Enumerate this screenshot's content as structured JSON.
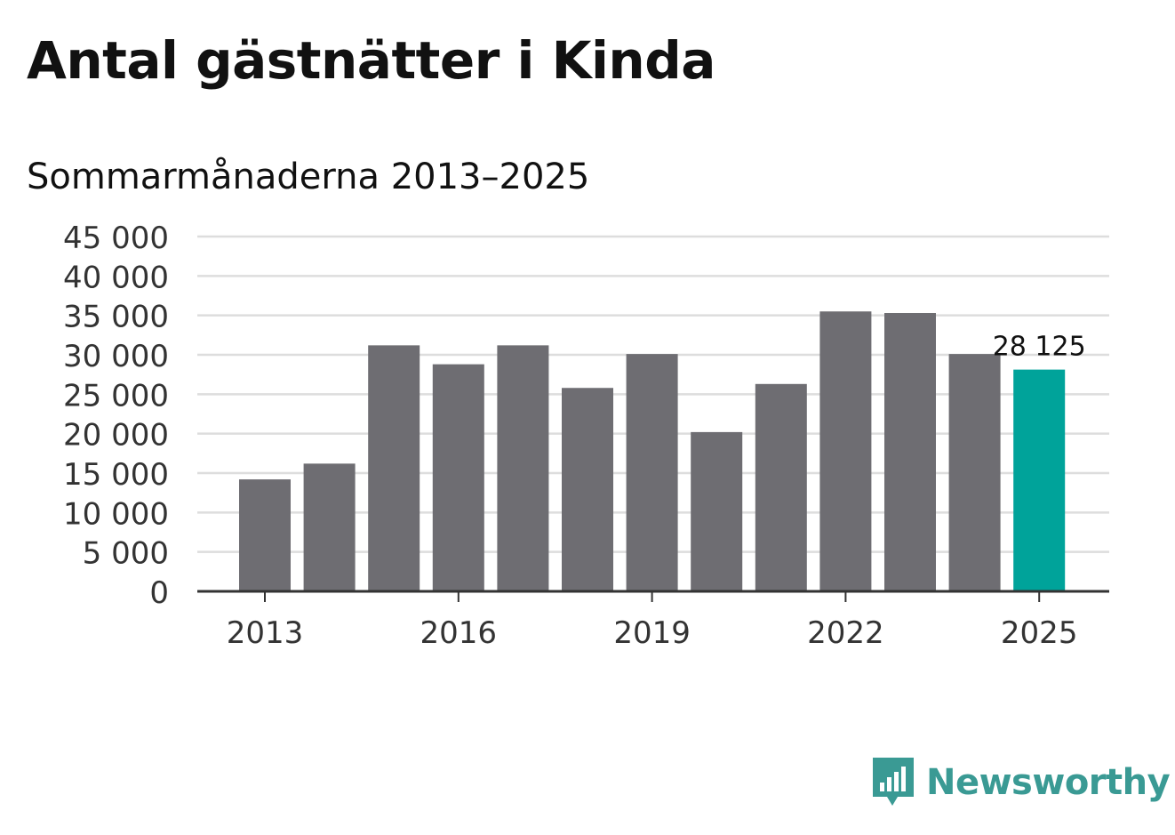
{
  "title": "Antal gästnätter i Kinda",
  "subtitle": "Sommarmånaderna 2013–2025",
  "brand": {
    "name": "Newsworthy",
    "icon": "newsworthy-logo-icon",
    "color": "#3a9a94"
  },
  "chart_data": {
    "type": "bar",
    "categories": [
      "2013",
      "2014",
      "2015",
      "2016",
      "2017",
      "2018",
      "2019",
      "2020",
      "2021",
      "2022",
      "2023",
      "2024",
      "2025"
    ],
    "values": [
      14200,
      16200,
      31200,
      28800,
      31200,
      25800,
      30100,
      20200,
      26300,
      35500,
      35300,
      30100,
      28125
    ],
    "ylim": [
      0,
      45000
    ],
    "yticks": [
      0,
      5000,
      10000,
      15000,
      20000,
      25000,
      30000,
      35000,
      40000,
      45000
    ],
    "ytick_labels": [
      "0",
      "5 000",
      "10 000",
      "15 000",
      "20 000",
      "25 000",
      "30 000",
      "35 000",
      "40 000",
      "45 000"
    ],
    "xtick_labels": [
      "2013",
      "2016",
      "2019",
      "2022",
      "2025"
    ],
    "data_labels": [
      {
        "category": "2025",
        "text": "28 125"
      }
    ],
    "highlight": "2025",
    "colors": {
      "bar": "#6e6d72",
      "highlight": "#00a39a",
      "grid": "#dddddd",
      "axis": "#333333"
    },
    "grid": true
  }
}
